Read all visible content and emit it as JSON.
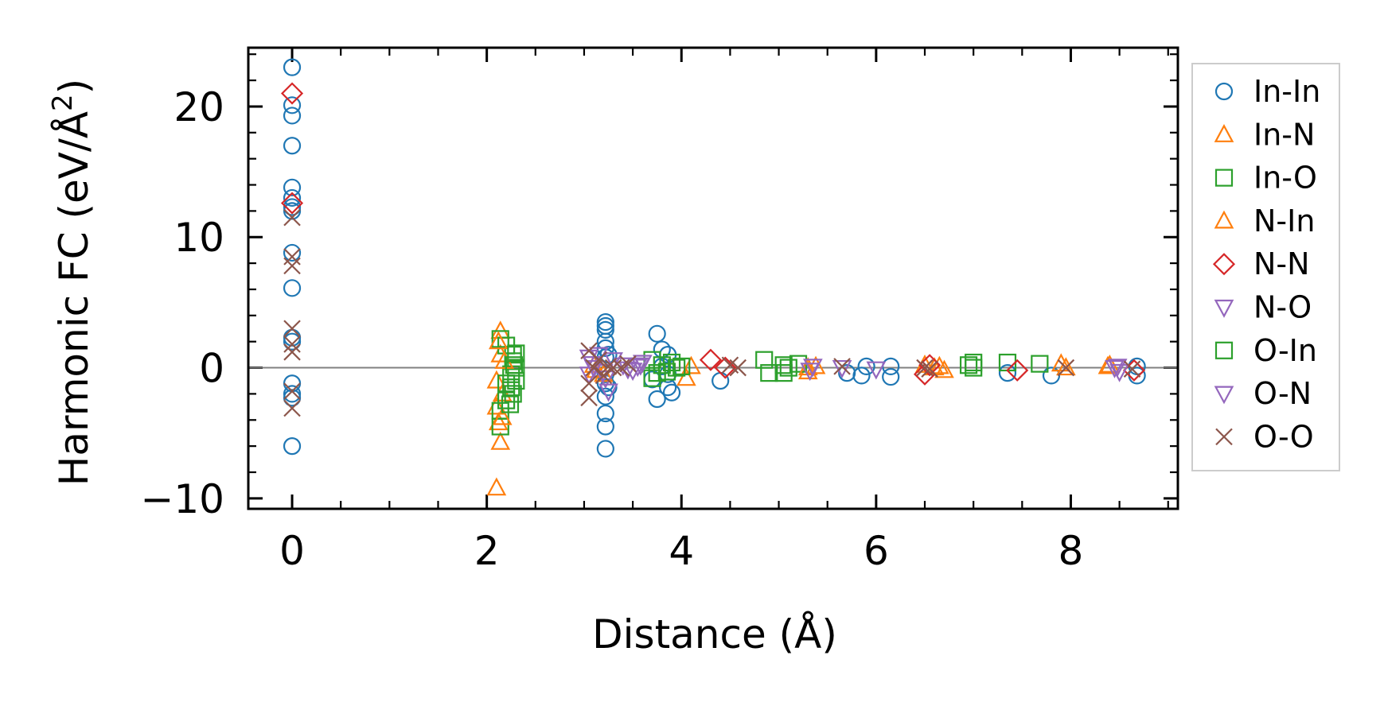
{
  "chart_data": {
    "type": "scatter",
    "title": "",
    "xlabel": "Distance (Å)",
    "ylabel_main": "Harmonic FC (eV/Å",
    "ylabel_sup": "2",
    "ylabel_close": ")",
    "xlim": [
      -0.45,
      9.1
    ],
    "ylim": [
      -10.8,
      24.5
    ],
    "xticks": [
      0,
      2,
      4,
      6,
      8
    ],
    "yticks": [
      -10,
      0,
      10,
      20
    ],
    "xtick_labels": [
      "0",
      "2",
      "4",
      "6",
      "8"
    ],
    "ytick_labels": [
      "−10",
      "0",
      "10",
      "20"
    ],
    "zero_line": 0,
    "legend_position": "outside-right",
    "series": [
      {
        "name": "In-In",
        "marker": "circle",
        "color": "#1f77b4",
        "points": [
          [
            0,
            23
          ],
          [
            0,
            20.1
          ],
          [
            0,
            19.3
          ],
          [
            0,
            17.0
          ],
          [
            0,
            13.8
          ],
          [
            0,
            13.0
          ],
          [
            0,
            12.3
          ],
          [
            0,
            12.0
          ],
          [
            0,
            8.8
          ],
          [
            0,
            6.1
          ],
          [
            0,
            2.3
          ],
          [
            0,
            2.0
          ],
          [
            0,
            -1.2
          ],
          [
            0,
            -2.0
          ],
          [
            0,
            -2.3
          ],
          [
            0,
            -6.0
          ],
          [
            3.22,
            3.5
          ],
          [
            3.22,
            3.2
          ],
          [
            3.22,
            2.9
          ],
          [
            3.22,
            2.0
          ],
          [
            3.22,
            1.5
          ],
          [
            3.22,
            0.8
          ],
          [
            3.22,
            -0.5
          ],
          [
            3.22,
            -1.2
          ],
          [
            3.22,
            -2.2
          ],
          [
            3.22,
            -3.5
          ],
          [
            3.22,
            -4.5
          ],
          [
            3.22,
            -6.2
          ],
          [
            3.25,
            -1.5
          ],
          [
            3.25,
            1.0
          ],
          [
            3.75,
            2.6
          ],
          [
            3.8,
            1.4
          ],
          [
            3.86,
            1.0
          ],
          [
            3.86,
            -0.5
          ],
          [
            3.86,
            -1.5
          ],
          [
            3.75,
            -2.4
          ],
          [
            3.7,
            -0.9
          ],
          [
            3.9,
            -1.9
          ],
          [
            3.8,
            0.1
          ],
          [
            4.4,
            -1.0
          ],
          [
            5.7,
            -0.4
          ],
          [
            5.85,
            -0.6
          ],
          [
            5.9,
            0.1
          ],
          [
            6.15,
            -0.7
          ],
          [
            6.15,
            0.1
          ],
          [
            7.35,
            -0.4
          ],
          [
            7.8,
            -0.6
          ],
          [
            8.68,
            -0.6
          ],
          [
            8.68,
            0.1
          ]
        ]
      },
      {
        "name": "In-N",
        "marker": "triangle-up",
        "color": "#ff7f0e",
        "points": [
          [
            2.1,
            -9.2
          ],
          [
            2.14,
            -5.7
          ],
          [
            2.12,
            -4.2
          ],
          [
            2.1,
            -3.0
          ],
          [
            2.1,
            -1.0
          ],
          [
            2.14,
            2.8
          ],
          [
            2.14,
            1.0
          ],
          [
            2.16,
            -2.0
          ],
          [
            3.1,
            0.2
          ],
          [
            3.2,
            -0.5
          ],
          [
            4.05,
            -0.8
          ],
          [
            4.1,
            0.1
          ],
          [
            5.3,
            -0.3
          ],
          [
            5.38,
            0.1
          ],
          [
            6.5,
            0.2
          ],
          [
            6.6,
            0.0
          ],
          [
            6.7,
            -0.2
          ],
          [
            7.9,
            0.3
          ],
          [
            8.38,
            0.1
          ]
        ]
      },
      {
        "name": "In-O",
        "marker": "square",
        "color": "#2ca02c",
        "points": [
          [
            2.14,
            2.2
          ],
          [
            2.2,
            1.7
          ],
          [
            2.14,
            -4.5
          ],
          [
            2.14,
            -3.3
          ],
          [
            2.2,
            -2.5
          ],
          [
            2.25,
            -1.5
          ],
          [
            2.25,
            -0.5
          ],
          [
            2.27,
            0.5
          ],
          [
            2.27,
            1.0
          ],
          [
            2.3,
            0.0
          ],
          [
            2.3,
            -1.0
          ],
          [
            2.2,
            -1.2
          ],
          [
            2.27,
            -2.0
          ],
          [
            3.7,
            0.6
          ],
          [
            3.7,
            -0.8
          ],
          [
            3.8,
            0.2
          ],
          [
            3.85,
            -0.3
          ],
          [
            3.9,
            0.4
          ],
          [
            4.0,
            0.1
          ],
          [
            4.85,
            0.6
          ],
          [
            4.9,
            -0.4
          ],
          [
            5.05,
            0.2
          ],
          [
            5.05,
            -0.4
          ],
          [
            5.2,
            0.3
          ],
          [
            7.0,
            0.4
          ],
          [
            7.0,
            0.0
          ],
          [
            7.35,
            0.4
          ],
          [
            7.68,
            0.3
          ]
        ]
      },
      {
        "name": "N-In",
        "marker": "triangle-up",
        "color": "#ff7f0e",
        "points": [
          [
            2.12,
            2.0
          ],
          [
            2.16,
            -3.8
          ],
          [
            2.18,
            0.5
          ],
          [
            3.12,
            -0.2
          ],
          [
            5.3,
            0.0
          ],
          [
            6.65,
            0.1
          ],
          [
            7.95,
            0.0
          ],
          [
            8.4,
            0.2
          ]
        ]
      },
      {
        "name": "N-N",
        "marker": "diamond",
        "color": "#d62728",
        "points": [
          [
            0,
            21.0
          ],
          [
            0,
            12.6
          ],
          [
            4.3,
            0.6
          ],
          [
            4.45,
            0.0
          ],
          [
            6.5,
            -0.5
          ],
          [
            6.55,
            0.2
          ],
          [
            7.45,
            -0.2
          ],
          [
            8.65,
            -0.2
          ]
        ]
      },
      {
        "name": "N-O",
        "marker": "triangle-down",
        "color": "#9467bd",
        "points": [
          [
            3.05,
            0.8
          ],
          [
            3.05,
            -0.5
          ],
          [
            3.1,
            0.0
          ],
          [
            3.15,
            1.0
          ],
          [
            3.22,
            -0.8
          ],
          [
            3.25,
            -1.8
          ],
          [
            3.3,
            0.6
          ],
          [
            3.4,
            0.2
          ],
          [
            3.5,
            -0.2
          ],
          [
            3.55,
            0.1
          ],
          [
            3.6,
            0.4
          ],
          [
            5.35,
            0.1
          ],
          [
            5.65,
            0.0
          ],
          [
            6.0,
            -0.1
          ],
          [
            8.45,
            0.0
          ],
          [
            8.5,
            -0.3
          ]
        ]
      },
      {
        "name": "O-In",
        "marker": "square",
        "color": "#2ca02c",
        "points": [
          [
            2.24,
            -2.8
          ],
          [
            2.28,
            0.2
          ],
          [
            2.3,
            1.1
          ],
          [
            3.75,
            -0.4
          ],
          [
            3.95,
            0.0
          ],
          [
            5.1,
            0.0
          ],
          [
            6.95,
            0.2
          ]
        ]
      },
      {
        "name": "O-N",
        "marker": "triangle-down",
        "color": "#9467bd",
        "points": [
          [
            3.08,
            0.3
          ],
          [
            3.2,
            -0.3
          ],
          [
            3.45,
            -0.1
          ],
          [
            3.58,
            0.2
          ],
          [
            5.32,
            -0.2
          ],
          [
            8.48,
            0.1
          ]
        ]
      },
      {
        "name": "O-O",
        "marker": "x",
        "color": "#8c564b",
        "points": [
          [
            0,
            11.5
          ],
          [
            0,
            8.5
          ],
          [
            0,
            7.8
          ],
          [
            0,
            3.0
          ],
          [
            0,
            1.8
          ],
          [
            0,
            1.2
          ],
          [
            0,
            -1.8
          ],
          [
            0,
            -3.1
          ],
          [
            3.05,
            1.3
          ],
          [
            3.05,
            -2.3
          ],
          [
            3.05,
            -1.2
          ],
          [
            3.1,
            0.0
          ],
          [
            3.15,
            0.6
          ],
          [
            3.2,
            -0.6
          ],
          [
            3.25,
            0.1
          ],
          [
            3.3,
            0.0
          ],
          [
            3.38,
            0.0
          ],
          [
            3.45,
            0.3
          ],
          [
            4.5,
            0.2
          ],
          [
            4.58,
            0.0
          ],
          [
            5.65,
            0.1
          ],
          [
            6.5,
            0.0
          ],
          [
            6.55,
            -0.1
          ],
          [
            7.95,
            0.0
          ],
          [
            8.63,
            -0.1
          ]
        ]
      }
    ]
  }
}
